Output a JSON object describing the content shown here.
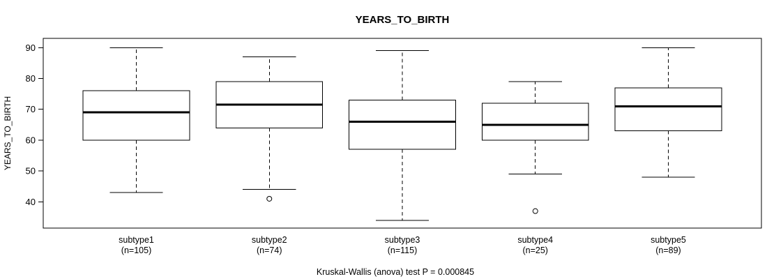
{
  "chart_data": {
    "type": "boxplot",
    "title": "YEARS_TO_BIRTH",
    "ylabel": "YEARS_TO_BIRTH",
    "footer": "Kruskal-Wallis (anova) test P = 0.000845",
    "ylim": [
      31.5,
      93
    ],
    "yticks": [
      40,
      50,
      60,
      70,
      80,
      90
    ],
    "grid": false,
    "categories": [
      "subtype1",
      "subtype2",
      "subtype3",
      "subtype4",
      "subtype5"
    ],
    "n_labels": [
      "(n=105)",
      "(n=74)",
      "(n=115)",
      "(n=25)",
      "(n=89)"
    ],
    "series": [
      {
        "name": "subtype1",
        "n": 105,
        "whisker_low": 43,
        "q1": 60,
        "median": 69,
        "q3": 76,
        "whisker_high": 90,
        "outliers": []
      },
      {
        "name": "subtype2",
        "n": 74,
        "whisker_low": 44,
        "q1": 64,
        "median": 71.5,
        "q3": 79,
        "whisker_high": 87,
        "outliers": [
          41
        ]
      },
      {
        "name": "subtype3",
        "n": 115,
        "whisker_low": 34,
        "q1": 57,
        "median": 66,
        "q3": 73,
        "whisker_high": 89,
        "outliers": []
      },
      {
        "name": "subtype4",
        "n": 25,
        "whisker_low": 49,
        "q1": 60,
        "median": 65,
        "q3": 72,
        "whisker_high": 79,
        "outliers": [
          37
        ]
      },
      {
        "name": "subtype5",
        "n": 89,
        "whisker_low": 48,
        "q1": 63,
        "median": 71,
        "q3": 77,
        "whisker_high": 90,
        "outliers": []
      }
    ],
    "colors": {
      "stroke": "#000000",
      "box_fill": "#ffffff",
      "background": "#ffffff"
    }
  }
}
